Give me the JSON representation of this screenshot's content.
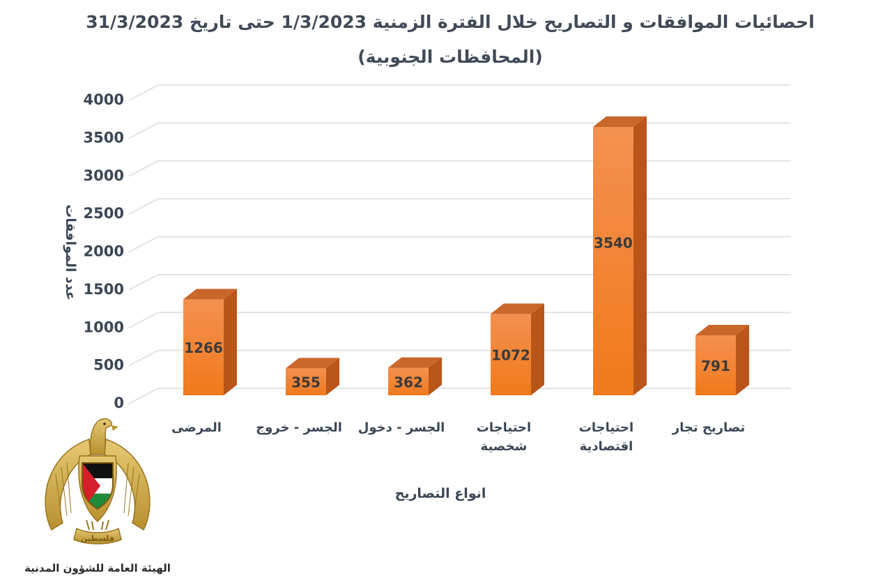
{
  "chart_data": {
    "type": "bar",
    "title_line1": "احصائيات الموافقات و التصاريح خلال الفترة الزمنية  1/3/2023  حتى تاريخ  31/3/2023",
    "title_line2": "(المحافظات الجنوبية)",
    "xlabel": "انواع التصاريح",
    "ylabel": "عدد الموافقات",
    "ylim": [
      0,
      4000
    ],
    "yticks": [
      "0",
      "500",
      "1000",
      "1500",
      "2000",
      "2500",
      "3000",
      "3500",
      "4000"
    ],
    "grid": true,
    "categories": [
      [
        "المرضى"
      ],
      [
        "الجسر - خروج"
      ],
      [
        "الجسر - دخول"
      ],
      [
        "احتياجات",
        "شخصية"
      ],
      [
        "احتياجات",
        "اقتصادية"
      ],
      [
        "تصاريح تجار"
      ]
    ],
    "values": [
      1266,
      355,
      362,
      1072,
      3540,
      791
    ],
    "data_labels": [
      "1266",
      "355",
      "362",
      "1072",
      "3540",
      "791"
    ],
    "bar_color": "#ef7f2e"
  },
  "footer": {
    "org_name": "الهيئة العامة للشؤون المدنية",
    "emblem_text": "فلسطين",
    "emblem_icon": "palestinian-eagle-emblem-icon"
  }
}
